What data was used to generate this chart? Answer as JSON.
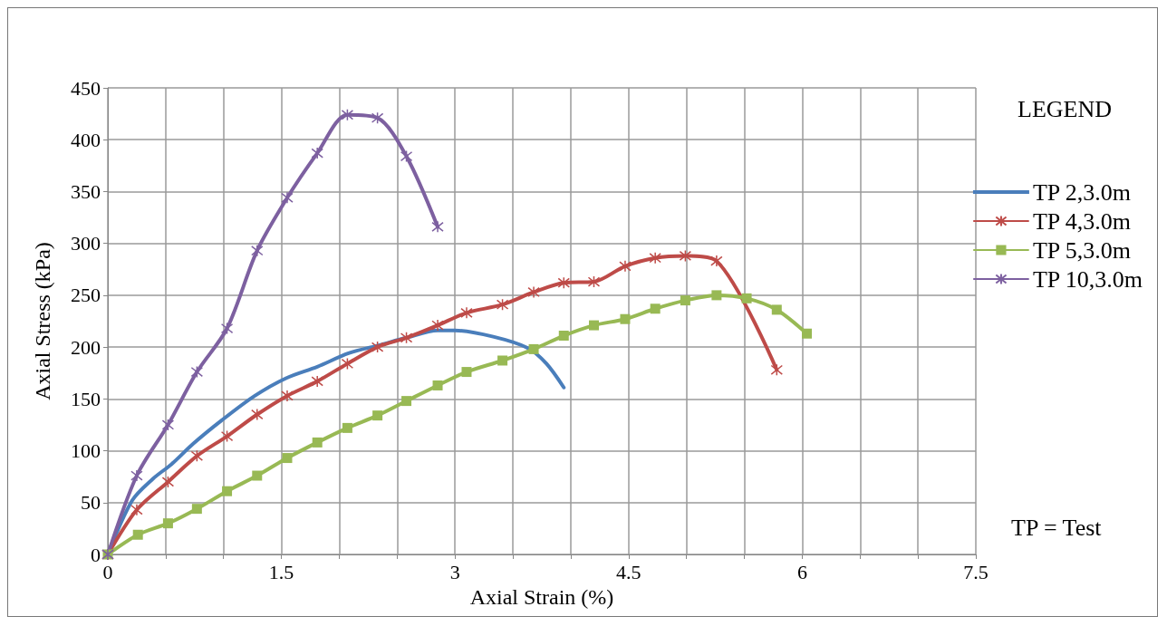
{
  "chart_data": {
    "type": "line",
    "xlabel": "Axial Strain (%)",
    "ylabel": "Axial Stress (kPa)",
    "legend_title": "LEGEND",
    "annotations": [
      "TP = Test"
    ],
    "xlim": [
      0,
      7.5
    ],
    "xticks": [
      0,
      {
        "value": 0.5,
        "label": null
      },
      {
        "value": 1,
        "label": null
      },
      1.5,
      {
        "value": 2,
        "label": null
      },
      {
        "value": 2.5,
        "label": null
      },
      3,
      {
        "value": 3.5,
        "label": null
      },
      {
        "value": 4,
        "label": null
      },
      4.5,
      {
        "value": 5,
        "label": null
      },
      {
        "value": 5.5,
        "label": null
      },
      6,
      {
        "value": 6.5,
        "label": null
      },
      {
        "value": 7,
        "label": null
      },
      7.5
    ],
    "ylim": [
      0,
      450
    ],
    "yticks": [
      0,
      50,
      100,
      150,
      200,
      250,
      300,
      350,
      400,
      450
    ],
    "grid": true,
    "legend": "right",
    "line_style": "solid",
    "series": [
      {
        "name": "TP 2,3.0m",
        "color": "#4a7ebb",
        "marker": "none",
        "x": [
          0,
          0.21,
          0.39,
          0.55,
          0.74,
          0.98,
          1.27,
          1.54,
          1.81,
          2.08,
          2.35,
          2.58,
          2.85,
          3.0,
          3.33,
          3.63,
          3.79,
          3.94
        ],
        "values": [
          0,
          52,
          73,
          87,
          107,
          129,
          153,
          170,
          181,
          194,
          202,
          209,
          216,
          216,
          210,
          199,
          184,
          161
        ]
      },
      {
        "name": "TP 4,3.0m",
        "color": "#be4b48",
        "marker": "cross",
        "x": [
          0,
          0.25,
          0.52,
          0.77,
          1.03,
          1.29,
          1.55,
          1.81,
          2.07,
          2.33,
          2.58,
          2.85,
          3.1,
          3.41,
          3.68,
          3.94,
          4.2,
          4.47,
          4.73,
          4.99,
          5.26,
          5.78
        ],
        "values": [
          0,
          43,
          70,
          95,
          114,
          135,
          153,
          167,
          184,
          200,
          209,
          221,
          233,
          241,
          253,
          262,
          263,
          278,
          286,
          288,
          283,
          178
        ]
      },
      {
        "name": "TP 5,3.0m",
        "color": "#98b954",
        "marker": "square",
        "x": [
          0,
          0.26,
          0.52,
          0.77,
          1.03,
          1.29,
          1.55,
          1.81,
          2.07,
          2.33,
          2.58,
          2.85,
          3.1,
          3.41,
          3.68,
          3.94,
          4.2,
          4.47,
          4.73,
          4.99,
          5.26,
          5.52,
          5.78,
          6.04
        ],
        "values": [
          0,
          19,
          30,
          44,
          61,
          76,
          93,
          108,
          122,
          134,
          148,
          163,
          176,
          187,
          198,
          211,
          221,
          227,
          237,
          245,
          250,
          247,
          236,
          213
        ]
      },
      {
        "name": "TP 10,3.0m",
        "color": "#7d60a0",
        "marker": "cross",
        "x": [
          0,
          0.25,
          0.52,
          0.77,
          1.03,
          1.29,
          1.55,
          1.81,
          2.07,
          2.33,
          2.58,
          2.85
        ],
        "values": [
          0,
          76,
          125,
          176,
          218,
          293,
          344,
          387,
          424,
          421,
          384,
          316
        ]
      }
    ]
  }
}
